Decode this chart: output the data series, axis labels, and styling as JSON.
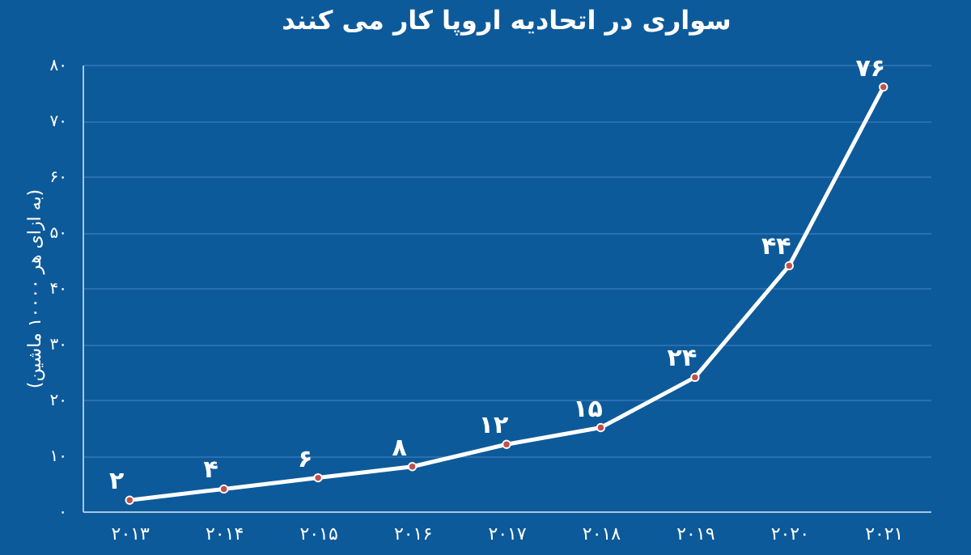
{
  "chart_data": {
    "type": "line",
    "title": "سواری در اتحادیه اروپا کار می کنند",
    "ylabel": "(به ازای هر ۱۰۰۰۰ ماشین)",
    "categories": [
      "۲۰۱۳",
      "۲۰۱۴",
      "۲۰۱۵",
      "۲۰۱۶",
      "۲۰۱۷",
      "۲۰۱۸",
      "۲۰۱۹",
      "۲۰۲۰",
      "۲۰۲۱"
    ],
    "series": [
      {
        "color": "#ffffff",
        "values": [
          2,
          4,
          6,
          8,
          12,
          15,
          24,
          44,
          76
        ],
        "value_labels": [
          "۲",
          "۴",
          "۶",
          "۸",
          "۱۲",
          "۱۵",
          "۲۴",
          "۴۴",
          "۷۶"
        ]
      }
    ],
    "ylim": [
      0,
      80
    ],
    "yticks": [
      {
        "value": 0,
        "label": "۰"
      },
      {
        "value": 10,
        "label": "۱۰"
      },
      {
        "value": 20,
        "label": "۲۰"
      },
      {
        "value": 30,
        "label": "۳۰"
      },
      {
        "value": 40,
        "label": "۴۰"
      },
      {
        "value": 50,
        "label": "۵۰"
      },
      {
        "value": 60,
        "label": "۶۰"
      },
      {
        "value": 70,
        "label": "۷۰"
      },
      {
        "value": 80,
        "label": "۸۰"
      }
    ],
    "grid": "y",
    "marker": "circle",
    "line_style": "solid"
  }
}
